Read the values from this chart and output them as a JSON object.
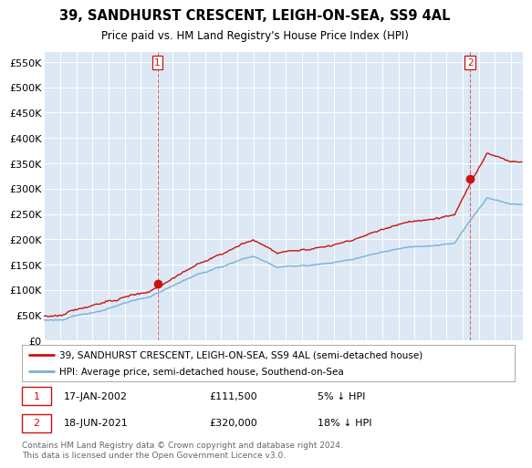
{
  "title": "39, SANDHURST CRESCENT, LEIGH-ON-SEA, SS9 4AL",
  "subtitle": "Price paid vs. HM Land Registry's House Price Index (HPI)",
  "ylabel_ticks": [
    "£0",
    "£50K",
    "£100K",
    "£150K",
    "£200K",
    "£250K",
    "£300K",
    "£350K",
    "£400K",
    "£450K",
    "£500K",
    "£550K"
  ],
  "ytick_values": [
    0,
    50000,
    100000,
    150000,
    200000,
    250000,
    300000,
    350000,
    400000,
    450000,
    500000,
    550000
  ],
  "ylim": [
    0,
    570000
  ],
  "xlim_start": 1995.0,
  "xlim_end": 2024.75,
  "hpi_color": "#7ab0d4",
  "price_color": "#cc1111",
  "marker1_date": 2002.04,
  "marker1_value": 111500,
  "marker1_label": "1",
  "marker2_date": 2021.46,
  "marker2_value": 320000,
  "marker2_label": "2",
  "vline1_x": 2002.04,
  "vline2_x": 2021.46,
  "legend_line1": "39, SANDHURST CRESCENT, LEIGH-ON-SEA, SS9 4AL (semi-detached house)",
  "legend_line2": "HPI: Average price, semi-detached house, Southend-on-Sea",
  "footer": "Contains HM Land Registry data © Crown copyright and database right 2024.\nThis data is licensed under the Open Government Licence v3.0.",
  "background_color": "#ffffff",
  "plot_bg_color": "#dce9f5"
}
